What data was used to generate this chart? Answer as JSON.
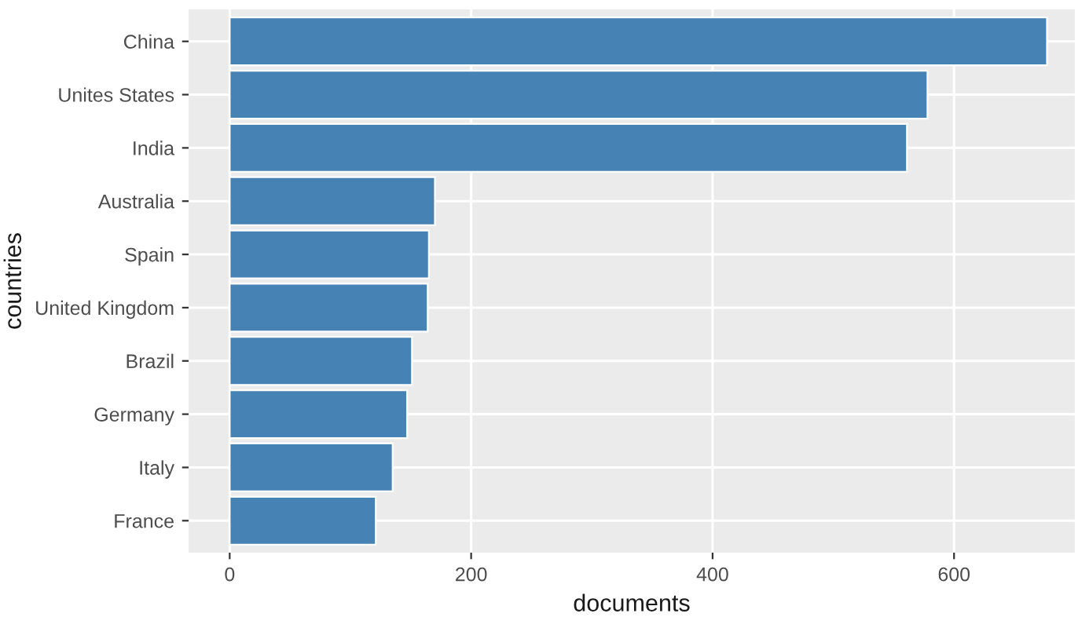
{
  "chart_data": {
    "type": "bar",
    "orientation": "horizontal",
    "categories": [
      "China",
      "Unites States",
      "India",
      "Australia",
      "Spain",
      "United Kingdom",
      "Brazil",
      "Germany",
      "Italy",
      "France"
    ],
    "values": [
      677,
      578,
      561,
      170,
      165,
      164,
      151,
      147,
      135,
      121
    ],
    "color": "#4682b4",
    "xlabel": "documents",
    "ylabel": "countries",
    "xlim": [
      -34,
      700
    ],
    "xticks": [
      0,
      200,
      400,
      600
    ],
    "grid": true
  }
}
